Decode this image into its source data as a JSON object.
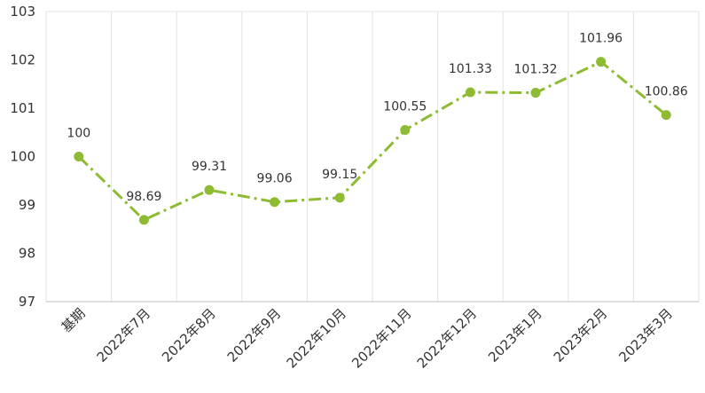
{
  "chart_data": {
    "type": "line",
    "title": "",
    "xlabel": "",
    "ylabel": "",
    "categories": [
      "基期",
      "2022年7月",
      "2022年8月",
      "2022年9月",
      "2022年10月",
      "2022年11月",
      "2022年12月",
      "2023年1月",
      "2023年2月",
      "2023年3月"
    ],
    "series": [
      {
        "values": [
          100,
          98.69,
          99.31,
          99.06,
          99.15,
          100.55,
          101.33,
          101.32,
          101.96,
          100.86
        ],
        "labels": [
          "100",
          "98.69",
          "99.31",
          "99.06",
          "99.15",
          "100.55",
          "101.33",
          "101.32",
          "101.96",
          "100.86"
        ]
      }
    ],
    "ylim": [
      97,
      103
    ],
    "yticks": [
      97,
      98,
      99,
      100,
      101,
      102,
      103
    ],
    "ytick_labels": [
      "97",
      "98",
      "99",
      "100",
      "101",
      "102",
      "103"
    ],
    "grid": "vertical",
    "legend": "none",
    "line_style": "dash-dot",
    "colors": {
      "series": "#8dbb32",
      "grid": "#e3e3e3",
      "axis": "#bfbfbf"
    }
  }
}
